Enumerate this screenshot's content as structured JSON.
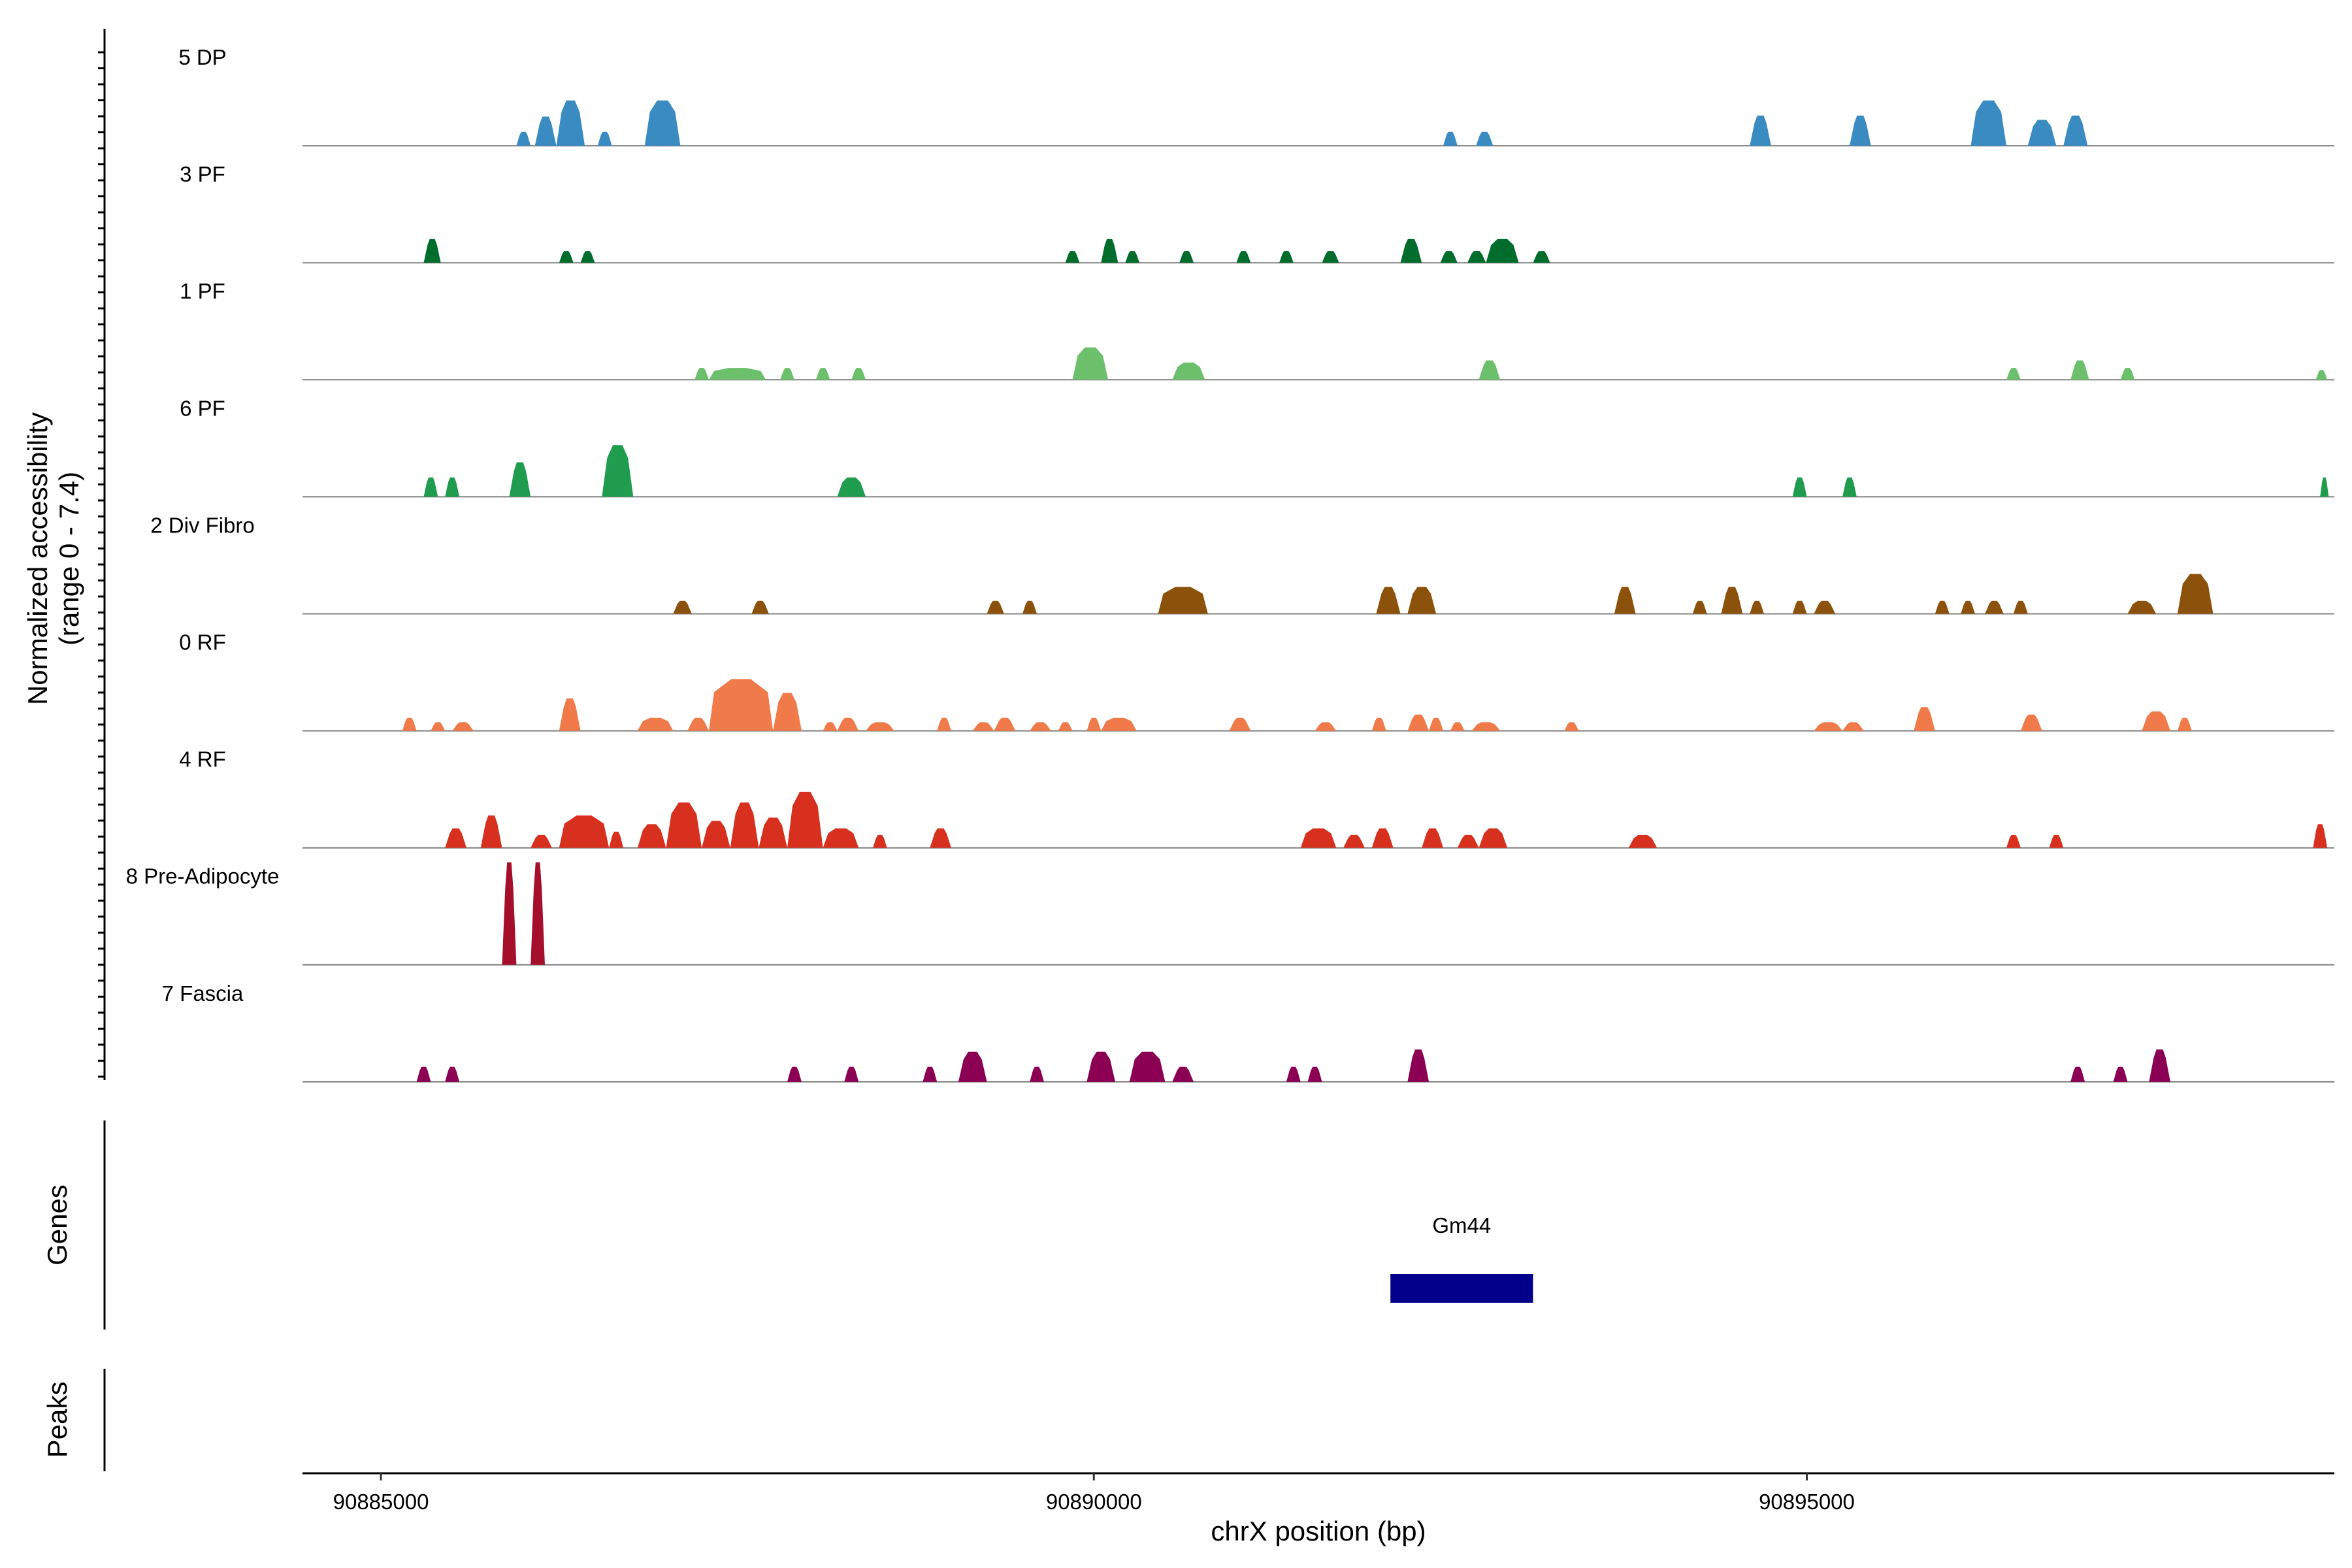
{
  "chart_data": {
    "type": "area",
    "title": "",
    "ylabel_lines": [
      "Normalized accessibility",
      "(range 0 - 7.4)"
    ],
    "xlabel": "chrX position (bp)",
    "xlim": [
      90884450,
      90898700
    ],
    "x_ticks": [
      90885000,
      90890000,
      90895000
    ],
    "x_tick_labels": [
      "90885000",
      "90890000",
      "90895000"
    ],
    "y_range": [
      0,
      7.4
    ],
    "tracks": [
      {
        "name": "5 DP",
        "color": "#3a8bc2",
        "peaks": [
          {
            "start": 90885950,
            "end": 90886050,
            "h": 0.13
          },
          {
            "start": 90886080,
            "end": 90886230,
            "h": 0.27
          },
          {
            "start": 90886230,
            "end": 90886430,
            "h": 0.42
          },
          {
            "start": 90886520,
            "end": 90886620,
            "h": 0.13
          },
          {
            "start": 90886850,
            "end": 90887100,
            "h": 0.42
          },
          {
            "start": 90892450,
            "end": 90892550,
            "h": 0.13
          },
          {
            "start": 90892680,
            "end": 90892800,
            "h": 0.13
          },
          {
            "start": 90894600,
            "end": 90894750,
            "h": 0.28
          },
          {
            "start": 90895300,
            "end": 90895450,
            "h": 0.28
          },
          {
            "start": 90896150,
            "end": 90896400,
            "h": 0.42
          },
          {
            "start": 90896550,
            "end": 90896750,
            "h": 0.24
          },
          {
            "start": 90896800,
            "end": 90896970,
            "h": 0.28
          }
        ]
      },
      {
        "name": "3 PF",
        "color": "#006d2c",
        "peaks": [
          {
            "start": 90885300,
            "end": 90885420,
            "h": 0.22
          },
          {
            "start": 90886250,
            "end": 90886350,
            "h": 0.11
          },
          {
            "start": 90886400,
            "end": 90886500,
            "h": 0.11
          },
          {
            "start": 90889800,
            "end": 90889900,
            "h": 0.11
          },
          {
            "start": 90890050,
            "end": 90890170,
            "h": 0.22
          },
          {
            "start": 90890220,
            "end": 90890320,
            "h": 0.11
          },
          {
            "start": 90890600,
            "end": 90890700,
            "h": 0.11
          },
          {
            "start": 90891000,
            "end": 90891100,
            "h": 0.11
          },
          {
            "start": 90891300,
            "end": 90891400,
            "h": 0.11
          },
          {
            "start": 90891600,
            "end": 90891720,
            "h": 0.11
          },
          {
            "start": 90892150,
            "end": 90892300,
            "h": 0.22
          },
          {
            "start": 90892430,
            "end": 90892550,
            "h": 0.11
          },
          {
            "start": 90892620,
            "end": 90892750,
            "h": 0.11
          },
          {
            "start": 90892750,
            "end": 90892980,
            "h": 0.22
          },
          {
            "start": 90893080,
            "end": 90893200,
            "h": 0.11
          }
        ]
      },
      {
        "name": "1 PF",
        "color": "#6cc06b",
        "peaks": [
          {
            "start": 90887200,
            "end": 90887300,
            "h": 0.11
          },
          {
            "start": 90887300,
            "end": 90887700,
            "h": 0.11
          },
          {
            "start": 90887800,
            "end": 90887900,
            "h": 0.11
          },
          {
            "start": 90888050,
            "end": 90888150,
            "h": 0.11
          },
          {
            "start": 90888300,
            "end": 90888400,
            "h": 0.11
          },
          {
            "start": 90889850,
            "end": 90890100,
            "h": 0.3
          },
          {
            "start": 90890550,
            "end": 90890780,
            "h": 0.16
          },
          {
            "start": 90892700,
            "end": 90892850,
            "h": 0.18
          },
          {
            "start": 90896400,
            "end": 90896500,
            "h": 0.11
          },
          {
            "start": 90896850,
            "end": 90896980,
            "h": 0.18
          },
          {
            "start": 90897200,
            "end": 90897300,
            "h": 0.11
          },
          {
            "start": 90898570,
            "end": 90898650,
            "h": 0.09
          }
        ]
      },
      {
        "name": "6 PF",
        "color": "#1f9c4e",
        "peaks": [
          {
            "start": 90885300,
            "end": 90885400,
            "h": 0.18
          },
          {
            "start": 90885450,
            "end": 90885550,
            "h": 0.18
          },
          {
            "start": 90885900,
            "end": 90886050,
            "h": 0.32
          },
          {
            "start": 90886550,
            "end": 90886770,
            "h": 0.48
          },
          {
            "start": 90888200,
            "end": 90888400,
            "h": 0.18
          },
          {
            "start": 90894900,
            "end": 90895000,
            "h": 0.18
          },
          {
            "start": 90895250,
            "end": 90895350,
            "h": 0.18
          },
          {
            "start": 90898600,
            "end": 90898660,
            "h": 0.18
          }
        ]
      },
      {
        "name": "2 Div Fibro",
        "color": "#8c510a",
        "peaks": [
          {
            "start": 90887050,
            "end": 90887180,
            "h": 0.12
          },
          {
            "start": 90887600,
            "end": 90887720,
            "h": 0.12
          },
          {
            "start": 90889250,
            "end": 90889370,
            "h": 0.12
          },
          {
            "start": 90889500,
            "end": 90889600,
            "h": 0.12
          },
          {
            "start": 90890450,
            "end": 90890800,
            "h": 0.25
          },
          {
            "start": 90891980,
            "end": 90892150,
            "h": 0.25
          },
          {
            "start": 90892200,
            "end": 90892400,
            "h": 0.25
          },
          {
            "start": 90893650,
            "end": 90893800,
            "h": 0.25
          },
          {
            "start": 90894200,
            "end": 90894300,
            "h": 0.12
          },
          {
            "start": 90894400,
            "end": 90894550,
            "h": 0.25
          },
          {
            "start": 90894600,
            "end": 90894700,
            "h": 0.12
          },
          {
            "start": 90894900,
            "end": 90895000,
            "h": 0.12
          },
          {
            "start": 90895050,
            "end": 90895200,
            "h": 0.12
          },
          {
            "start": 90895900,
            "end": 90896000,
            "h": 0.12
          },
          {
            "start": 90896080,
            "end": 90896180,
            "h": 0.12
          },
          {
            "start": 90896250,
            "end": 90896380,
            "h": 0.12
          },
          {
            "start": 90896450,
            "end": 90896550,
            "h": 0.12
          },
          {
            "start": 90897250,
            "end": 90897450,
            "h": 0.12
          },
          {
            "start": 90897600,
            "end": 90897850,
            "h": 0.37
          }
        ]
      },
      {
        "name": "0 RF",
        "color": "#f07a49",
        "peaks": [
          {
            "start": 90885150,
            "end": 90885250,
            "h": 0.12
          },
          {
            "start": 90885350,
            "end": 90885450,
            "h": 0.08
          },
          {
            "start": 90885500,
            "end": 90885650,
            "h": 0.08
          },
          {
            "start": 90886250,
            "end": 90886400,
            "h": 0.3
          },
          {
            "start": 90886800,
            "end": 90887050,
            "h": 0.12
          },
          {
            "start": 90887150,
            "end": 90887300,
            "h": 0.12
          },
          {
            "start": 90887300,
            "end": 90887750,
            "h": 0.48
          },
          {
            "start": 90887750,
            "end": 90887950,
            "h": 0.35
          },
          {
            "start": 90888100,
            "end": 90888200,
            "h": 0.08
          },
          {
            "start": 90888200,
            "end": 90888350,
            "h": 0.12
          },
          {
            "start": 90888400,
            "end": 90888600,
            "h": 0.08
          },
          {
            "start": 90888900,
            "end": 90889000,
            "h": 0.12
          },
          {
            "start": 90889150,
            "end": 90889300,
            "h": 0.08
          },
          {
            "start": 90889300,
            "end": 90889450,
            "h": 0.12
          },
          {
            "start": 90889550,
            "end": 90889700,
            "h": 0.08
          },
          {
            "start": 90889750,
            "end": 90889850,
            "h": 0.08
          },
          {
            "start": 90889950,
            "end": 90890050,
            "h": 0.12
          },
          {
            "start": 90890050,
            "end": 90890300,
            "h": 0.12
          },
          {
            "start": 90890950,
            "end": 90891100,
            "h": 0.12
          },
          {
            "start": 90891550,
            "end": 90891700,
            "h": 0.08
          },
          {
            "start": 90891950,
            "end": 90892050,
            "h": 0.12
          },
          {
            "start": 90892200,
            "end": 90892350,
            "h": 0.15
          },
          {
            "start": 90892350,
            "end": 90892450,
            "h": 0.12
          },
          {
            "start": 90892500,
            "end": 90892600,
            "h": 0.08
          },
          {
            "start": 90892650,
            "end": 90892850,
            "h": 0.08
          },
          {
            "start": 90893300,
            "end": 90893400,
            "h": 0.08
          },
          {
            "start": 90895050,
            "end": 90895250,
            "h": 0.08
          },
          {
            "start": 90895250,
            "end": 90895400,
            "h": 0.08
          },
          {
            "start": 90895750,
            "end": 90895900,
            "h": 0.22
          },
          {
            "start": 90896500,
            "end": 90896650,
            "h": 0.15
          },
          {
            "start": 90897350,
            "end": 90897550,
            "h": 0.18
          },
          {
            "start": 90897600,
            "end": 90897700,
            "h": 0.12
          }
        ]
      },
      {
        "name": "4 RF",
        "color": "#d7301f",
        "peaks": [
          {
            "start": 90885450,
            "end": 90885600,
            "h": 0.18
          },
          {
            "start": 90885700,
            "end": 90885850,
            "h": 0.3
          },
          {
            "start": 90886050,
            "end": 90886200,
            "h": 0.12
          },
          {
            "start": 90886250,
            "end": 90886600,
            "h": 0.3
          },
          {
            "start": 90886600,
            "end": 90886700,
            "h": 0.15
          },
          {
            "start": 90886800,
            "end": 90887000,
            "h": 0.22
          },
          {
            "start": 90887000,
            "end": 90887250,
            "h": 0.42
          },
          {
            "start": 90887250,
            "end": 90887450,
            "h": 0.25
          },
          {
            "start": 90887450,
            "end": 90887650,
            "h": 0.42
          },
          {
            "start": 90887650,
            "end": 90887850,
            "h": 0.28
          },
          {
            "start": 90887850,
            "end": 90888100,
            "h": 0.52
          },
          {
            "start": 90888100,
            "end": 90888350,
            "h": 0.18
          },
          {
            "start": 90888450,
            "end": 90888550,
            "h": 0.12
          },
          {
            "start": 90888850,
            "end": 90889000,
            "h": 0.18
          },
          {
            "start": 90891450,
            "end": 90891700,
            "h": 0.18
          },
          {
            "start": 90891750,
            "end": 90891900,
            "h": 0.12
          },
          {
            "start": 90891950,
            "end": 90892100,
            "h": 0.18
          },
          {
            "start": 90892300,
            "end": 90892450,
            "h": 0.18
          },
          {
            "start": 90892550,
            "end": 90892700,
            "h": 0.12
          },
          {
            "start": 90892700,
            "end": 90892900,
            "h": 0.18
          },
          {
            "start": 90893750,
            "end": 90893950,
            "h": 0.12
          },
          {
            "start": 90896400,
            "end": 90896500,
            "h": 0.12
          },
          {
            "start": 90896700,
            "end": 90896800,
            "h": 0.12
          },
          {
            "start": 90898550,
            "end": 90898650,
            "h": 0.22
          }
        ]
      },
      {
        "name": "8 Pre-Adipocyte",
        "color": "#a50f2b",
        "peaks": [
          {
            "start": 90885850,
            "end": 90885950,
            "h": 0.95
          },
          {
            "start": 90886050,
            "end": 90886150,
            "h": 0.95
          }
        ]
      },
      {
        "name": "7 Fascia",
        "color": "#8b0052",
        "peaks": [
          {
            "start": 90885250,
            "end": 90885350,
            "h": 0.14
          },
          {
            "start": 90885450,
            "end": 90885550,
            "h": 0.14
          },
          {
            "start": 90887850,
            "end": 90887950,
            "h": 0.14
          },
          {
            "start": 90888250,
            "end": 90888350,
            "h": 0.14
          },
          {
            "start": 90888800,
            "end": 90888900,
            "h": 0.14
          },
          {
            "start": 90889050,
            "end": 90889250,
            "h": 0.28
          },
          {
            "start": 90889550,
            "end": 90889650,
            "h": 0.14
          },
          {
            "start": 90889950,
            "end": 90890150,
            "h": 0.28
          },
          {
            "start": 90890250,
            "end": 90890500,
            "h": 0.28
          },
          {
            "start": 90890550,
            "end": 90890700,
            "h": 0.14
          },
          {
            "start": 90891350,
            "end": 90891450,
            "h": 0.14
          },
          {
            "start": 90891500,
            "end": 90891600,
            "h": 0.14
          },
          {
            "start": 90892200,
            "end": 90892350,
            "h": 0.3
          },
          {
            "start": 90896850,
            "end": 90896950,
            "h": 0.14
          },
          {
            "start": 90897150,
            "end": 90897250,
            "h": 0.14
          },
          {
            "start": 90897400,
            "end": 90897550,
            "h": 0.3
          }
        ]
      }
    ],
    "gene_track": {
      "label": "Genes",
      "genes": [
        {
          "name": "Gm44",
          "start": 90892080,
          "end": 90893080,
          "color": "#00008b"
        }
      ]
    },
    "peaks_track": {
      "label": "Peaks"
    }
  }
}
